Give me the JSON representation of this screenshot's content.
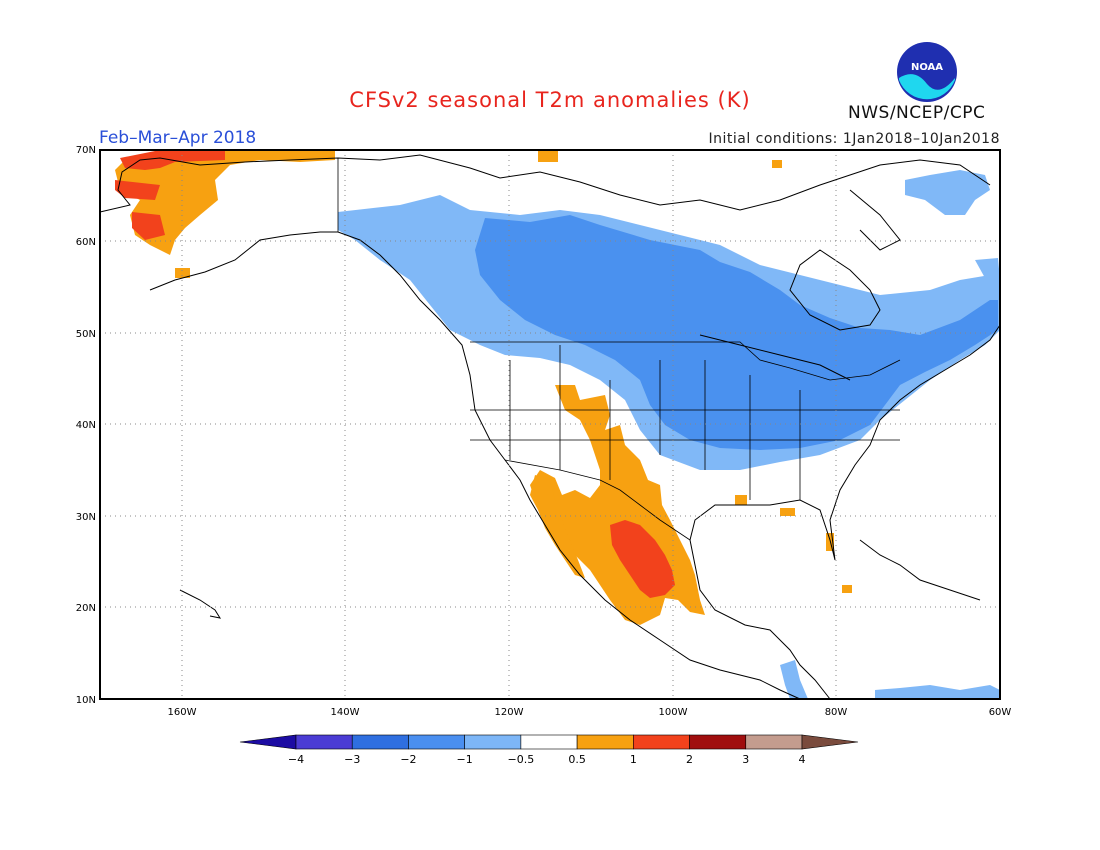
{
  "title": "CFSv2 seasonal T2m anomalies (K)",
  "period": "Feb–Mar–Apr 2018",
  "initial_conditions": "Initial conditions: 1Jan2018–10Jan2018",
  "organization": "NWS/NCEP/CPC",
  "logo_text": "NOAA",
  "lat_labels": [
    "70N",
    "60N",
    "50N",
    "40N",
    "30N",
    "20N",
    "10N"
  ],
  "lon_labels": [
    "160W",
    "140W",
    "120W",
    "100W",
    "80W",
    "60W"
  ],
  "colorbar": {
    "tick_labels": [
      "−4",
      "−3",
      "−2",
      "−1",
      "−0.5",
      "0.5",
      "1",
      "2",
      "3",
      "4"
    ],
    "colors": [
      "#1c0ca3",
      "#4b3cd4",
      "#2f6fe0",
      "#4a8ff0",
      "#7db6f7",
      "#ffffff",
      "#f7a111",
      "#f2421c",
      "#a00e0e",
      "#c49c8e",
      "#7a4b3d"
    ]
  },
  "colors": {
    "cold_light": "#80b8f7",
    "cold_med": "#4a91ef",
    "warm_light": "#f7a111",
    "warm_med": "#f2421c"
  }
}
